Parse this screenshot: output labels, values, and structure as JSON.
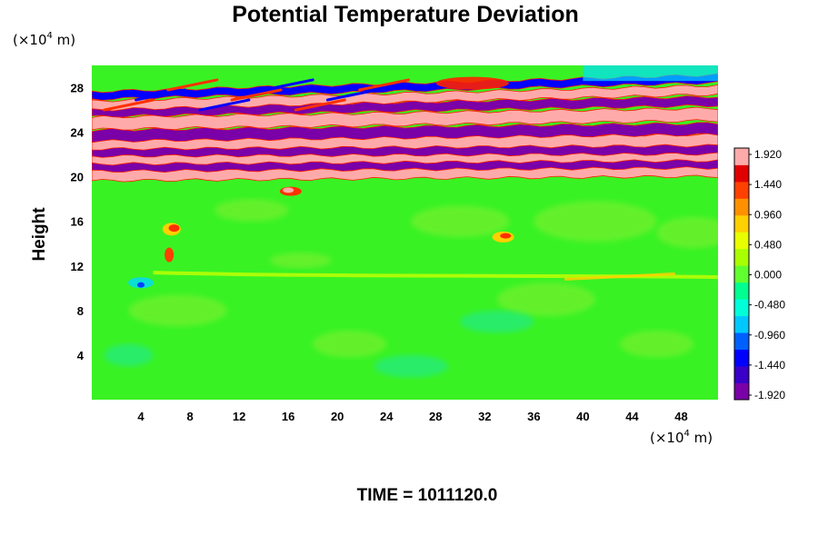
{
  "chart_data": {
    "type": "heatmap",
    "title": "Potential Temperature Deviation",
    "ylabel": "Height",
    "xlabel": "",
    "x_unit": {
      "prefix": "(×10",
      "exponent": "4",
      "suffix": " m)"
    },
    "y_unit": {
      "prefix": "(×10",
      "exponent": "4",
      "suffix": " m)"
    },
    "xlim": [
      0,
      51
    ],
    "ylim": [
      0,
      30
    ],
    "x_ticks": [
      4,
      8,
      12,
      16,
      20,
      24,
      28,
      32,
      36,
      40,
      44,
      48
    ],
    "y_ticks": [
      4,
      8,
      12,
      16,
      20,
      24,
      28
    ],
    "colorbar": {
      "ticks": [
        "1.920",
        "1.440",
        "0.960",
        "0.480",
        "0.000",
        "-0.480",
        "-0.960",
        "-1.440",
        "-1.920"
      ],
      "min": -1.92,
      "max": 1.92,
      "palette": [
        "#7a00a8",
        "#3a00c8",
        "#0000ff",
        "#0060ff",
        "#00c8ff",
        "#00ffd8",
        "#00ff90",
        "#60ff30",
        "#a8ff00",
        "#e8ff00",
        "#ffd000",
        "#ff9000",
        "#ff4000",
        "#e00000",
        "#ffaaaa"
      ]
    },
    "field_summary": {
      "lower_troposphere_0_to_19": "near 0 (green), with weak warm anomalies near x≈6,y≈15 and x≈33,y≈14.5 and a thin warm band near y≈11",
      "stratosphere_19_to_30": "alternating strong positive (pink/red) and negative (purple) tilted wave bands of magnitude about ±1.92"
    }
  },
  "annotation": {
    "time_label": "TIME = 1011120.0"
  }
}
